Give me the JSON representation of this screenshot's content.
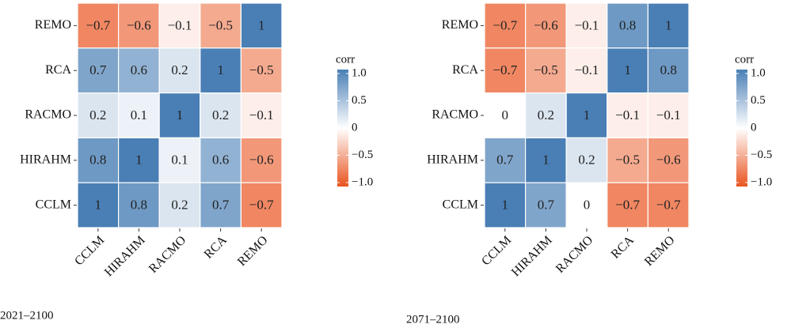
{
  "chart_data": [
    {
      "type": "heatmap",
      "x_categories": [
        "CCLM",
        "HIRAHM",
        "RACMO",
        "RCA",
        "REMO"
      ],
      "y_categories": [
        "REMO",
        "RCA",
        "RACMO",
        "HIRAHM",
        "CCLM"
      ],
      "values": [
        [
          -0.7,
          -0.6,
          -0.1,
          -0.5,
          1
        ],
        [
          0.7,
          0.6,
          0.2,
          1,
          -0.5
        ],
        [
          0.2,
          0.1,
          1,
          0.2,
          -0.1
        ],
        [
          0.8,
          1,
          0.1,
          0.6,
          -0.6
        ],
        [
          1,
          0.8,
          0.2,
          0.7,
          -0.7
        ]
      ],
      "value_labels": [
        [
          "−0.7",
          "−0.6",
          "−0.1",
          "−0.5",
          "1"
        ],
        [
          "0.7",
          "0.6",
          "0.2",
          "1",
          "−0.5"
        ],
        [
          "0.2",
          "0.1",
          "1",
          "0.2",
          "−0.1"
        ],
        [
          "0.8",
          "1",
          "0.1",
          "0.6",
          "−0.6"
        ],
        [
          "1",
          "0.8",
          "0.2",
          "0.7",
          "−0.7"
        ]
      ],
      "legend_title": "corr",
      "clim": [
        -1,
        1
      ],
      "cticks": [
        {
          "value": 1,
          "label": "1.0"
        },
        0.5,
        0,
        {
          "value": -0.5,
          "label": "−0.5"
        },
        {
          "value": -1,
          "label": "−1.0"
        }
      ],
      "colors": {
        "low": "#e9541f",
        "mid": "#ffffff",
        "high": "#4a7fb5"
      },
      "caption": "2021–2100"
    },
    {
      "type": "heatmap",
      "x_categories": [
        "CCLM",
        "HIRAHM",
        "RACMO",
        "RCA",
        "REMO"
      ],
      "y_categories": [
        "REMO",
        "RCA",
        "RACMO",
        "HIRAHM",
        "CCLM"
      ],
      "values": [
        [
          -0.7,
          -0.6,
          -0.1,
          0.8,
          1
        ],
        [
          -0.7,
          -0.5,
          -0.1,
          1,
          0.8
        ],
        [
          0,
          0.2,
          1,
          -0.1,
          -0.1
        ],
        [
          0.7,
          1,
          0.2,
          -0.5,
          -0.6
        ],
        [
          1,
          0.7,
          0,
          -0.7,
          -0.7
        ]
      ],
      "value_labels": [
        [
          "−0.7",
          "−0.6",
          "−0.1",
          "0.8",
          "1"
        ],
        [
          "−0.7",
          "−0.5",
          "−0.1",
          "1",
          "0.8"
        ],
        [
          "0",
          "0.2",
          "1",
          "−0.1",
          "−0.1"
        ],
        [
          "0.7",
          "1",
          "0.2",
          "−0.5",
          "−0.6"
        ],
        [
          "1",
          "0.7",
          "0",
          "−0.7",
          "−0.7"
        ]
      ],
      "legend_title": "corr",
      "clim": [
        -1,
        1
      ],
      "cticks": [
        {
          "value": 1,
          "label": "1.0"
        },
        0.5,
        0,
        {
          "value": -0.5,
          "label": "−0.5"
        },
        {
          "value": -1,
          "label": "−1.0"
        }
      ],
      "colors": {
        "low": "#e9541f",
        "mid": "#ffffff",
        "high": "#4a7fb5"
      },
      "caption": "2071–2100"
    }
  ]
}
